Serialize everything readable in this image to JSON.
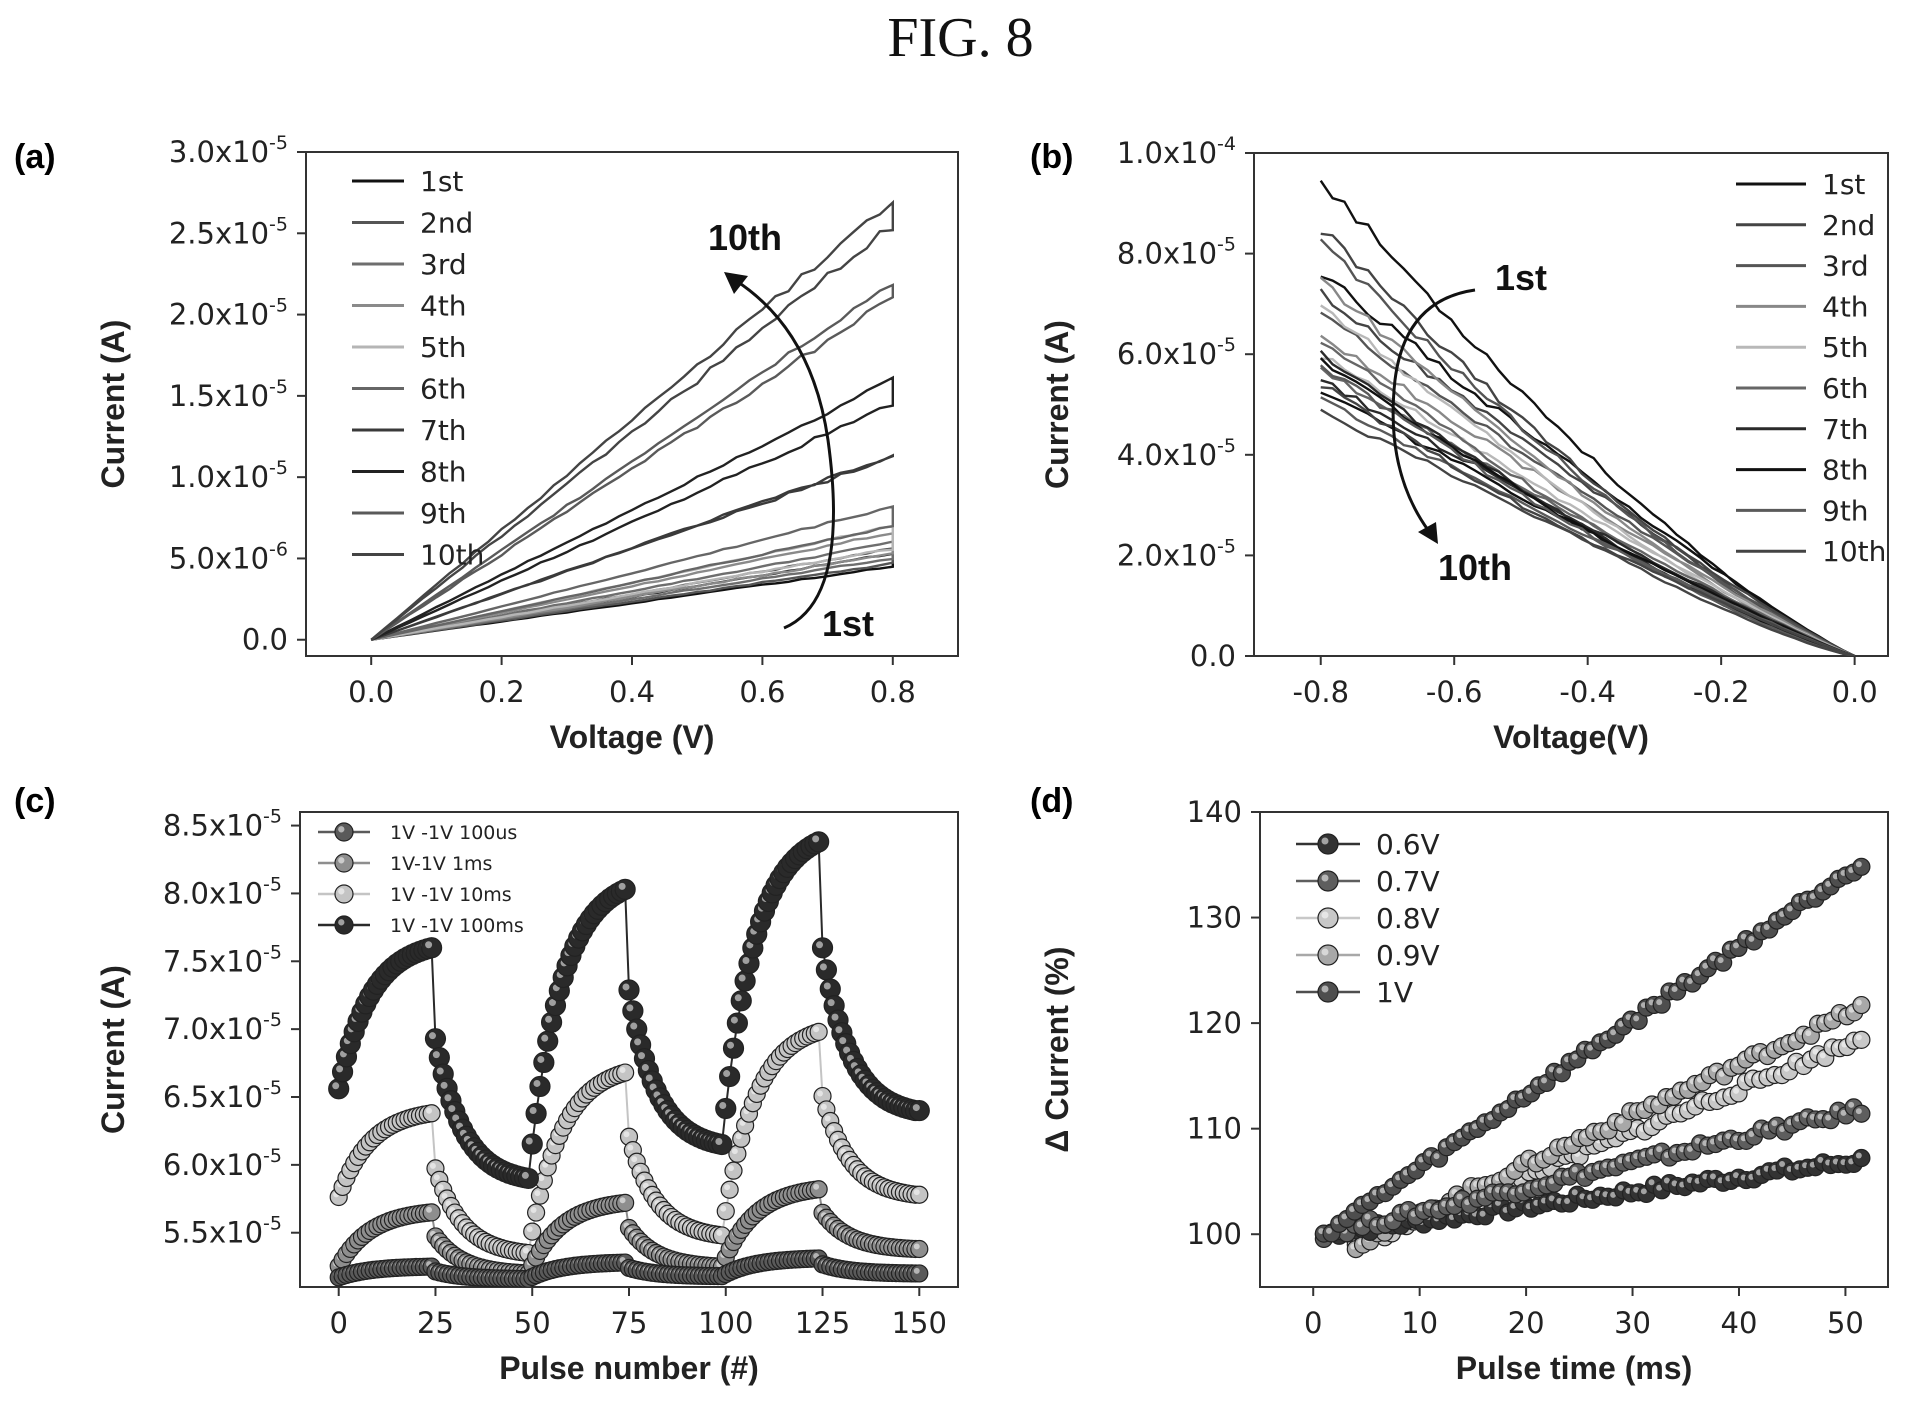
{
  "figure_title": "FIG. 8",
  "chart_data": [
    {
      "panel": "(a)",
      "type": "line",
      "xlabel": "Voltage (V)",
      "ylabel": "Current (A)",
      "xlim": [
        -0.1,
        0.9
      ],
      "ylim": [
        -1e-06,
        3e-05
      ],
      "xticks": [
        0.0,
        0.2,
        0.4,
        0.6,
        0.8
      ],
      "xtick_labels": [
        "0.0",
        "0.2",
        "0.4",
        "0.6",
        "0.8"
      ],
      "yticks": [
        0,
        5e-06,
        1e-05,
        1.5e-05,
        2e-05,
        2.5e-05,
        3e-05
      ],
      "ytick_labels": [
        [
          "0.0",
          ""
        ],
        [
          "5.0x10",
          "-6"
        ],
        [
          "1.0x10",
          "-5"
        ],
        [
          "1.5x10",
          "-5"
        ],
        [
          "2.0x10",
          "-5"
        ],
        [
          "2.5x10",
          "-5"
        ],
        [
          "3.0x10",
          "-5"
        ]
      ],
      "legend_position": "top-left",
      "annotations": [
        "10th",
        "1st"
      ],
      "colors": [
        "#111111",
        "#555555",
        "#6e6e6e",
        "#8a8a8a",
        "#b5b5b5",
        "#666666",
        "#3a3a3a",
        "#222222",
        "#5a5a5a",
        "#444444"
      ],
      "series": [
        {
          "name": "1st",
          "peak_y": 5.3e-06,
          "return_y": 4.5e-06
        },
        {
          "name": "2nd",
          "peak_y": 5.6e-06,
          "return_y": 4.7e-06
        },
        {
          "name": "3rd",
          "peak_y": 6e-06,
          "return_y": 5e-06
        },
        {
          "name": "4th",
          "peak_y": 6.6e-06,
          "return_y": 5.3e-06
        },
        {
          "name": "5th",
          "peak_y": 7e-06,
          "return_y": 5.6e-06
        },
        {
          "name": "6th",
          "peak_y": 8.2e-06,
          "return_y": 7e-06
        },
        {
          "name": "7th",
          "peak_y": 1.13e-05,
          "return_y": 1.12e-05
        },
        {
          "name": "8th",
          "peak_y": 1.6e-05,
          "return_y": 1.45e-05
        },
        {
          "name": "9th",
          "peak_y": 2.2e-05,
          "return_y": 2.1e-05
        },
        {
          "name": "10th",
          "peak_y": 2.7e-05,
          "return_y": 2.55e-05
        }
      ]
    },
    {
      "panel": "(b)",
      "type": "line",
      "xlabel": "Voltage(V)",
      "ylabel": "Current (A)",
      "xlim": [
        -0.9,
        0.05
      ],
      "ylim": [
        0,
        0.0001
      ],
      "xticks": [
        -0.8,
        -0.6,
        -0.4,
        -0.2,
        0.0
      ],
      "xtick_labels": [
        "-0.8",
        "-0.6",
        "-0.4",
        "-0.2",
        "0.0"
      ],
      "yticks": [
        0,
        2e-05,
        4e-05,
        6e-05,
        8e-05,
        0.0001
      ],
      "ytick_labels": [
        [
          "0.0",
          ""
        ],
        [
          "2.0x10",
          "-5"
        ],
        [
          "4.0x10",
          "-5"
        ],
        [
          "6.0x10",
          "-5"
        ],
        [
          "8.0x10",
          "-5"
        ],
        [
          "1.0x10",
          "-4"
        ]
      ],
      "legend_position": "top-right",
      "annotations": [
        "1st",
        "10th"
      ],
      "colors": [
        "#111111",
        "#444444",
        "#555555",
        "#888888",
        "#b8b8b8",
        "#666666",
        "#2a2a2a",
        "#111111",
        "#5a5a5a",
        "#444444"
      ],
      "series": [
        {
          "name": "1st",
          "start_y": 9.5e-05,
          "return_y": 7.6e-05
        },
        {
          "name": "2nd",
          "start_y": 8.5e-05,
          "return_y": 7.2e-05
        },
        {
          "name": "3rd",
          "start_y": 8.2e-05,
          "return_y": 6.8e-05
        },
        {
          "name": "4th",
          "start_y": 7.5e-05,
          "return_y": 6.4e-05
        },
        {
          "name": "5th",
          "start_y": 7e-05,
          "return_y": 6e-05
        },
        {
          "name": "6th",
          "start_y": 6.3e-05,
          "return_y": 5.7e-05
        },
        {
          "name": "7th",
          "start_y": 6e-05,
          "return_y": 5.5e-05
        },
        {
          "name": "8th",
          "start_y": 5.9e-05,
          "return_y": 5.3e-05
        },
        {
          "name": "9th",
          "start_y": 5.8e-05,
          "return_y": 5.1e-05
        },
        {
          "name": "10th",
          "start_y": 5.4e-05,
          "return_y": 4.9e-05
        }
      ]
    },
    {
      "panel": "(c)",
      "type": "scatter",
      "xlabel": "Pulse number (#)",
      "ylabel": "Current (A)",
      "xlim": [
        -10,
        160
      ],
      "ylim": [
        5.1e-05,
        8.6e-05
      ],
      "xticks": [
        0,
        25,
        50,
        75,
        100,
        125,
        150
      ],
      "xtick_labels": [
        "0",
        "25",
        "50",
        "75",
        "100",
        "125",
        "150"
      ],
      "yticks": [
        5.5e-05,
        6e-05,
        6.5e-05,
        7e-05,
        7.5e-05,
        8e-05,
        8.5e-05
      ],
      "ytick_labels": [
        [
          "5.5x10",
          "-5"
        ],
        [
          "6.0x10",
          "-5"
        ],
        [
          "6.5x10",
          "-5"
        ],
        [
          "7.0x10",
          "-5"
        ],
        [
          "7.5x10",
          "-5"
        ],
        [
          "8.0x10",
          "-5"
        ],
        [
          "8.5x10",
          "-5"
        ]
      ],
      "legend_position": "top-left",
      "series": [
        {
          "name": "1V -1V 100us",
          "color": "#5a5a5a",
          "peaks": [
            5.25e-05,
            5.28e-05,
            5.31e-05
          ],
          "lows": [
            5.16e-05,
            5.18e-05,
            5.2e-05
          ]
        },
        {
          "name": "1V-1V 1ms",
          "color": "#8e8e8e",
          "peaks": [
            5.65e-05,
            5.72e-05,
            5.82e-05
          ],
          "lows": [
            5.2e-05,
            5.25e-05,
            5.38e-05
          ]
        },
        {
          "name": "1V -1V 10ms",
          "color": "#c4c4c4",
          "peaks": [
            6.38e-05,
            6.68e-05,
            6.98e-05
          ],
          "lows": [
            5.35e-05,
            5.48e-05,
            5.78e-05
          ]
        },
        {
          "name": "1V -1V 100ms",
          "color": "#2a2a2a",
          "peaks": [
            7.6e-05,
            8.03e-05,
            8.38e-05
          ],
          "lows": [
            5.9e-05,
            6.15e-05,
            6.4e-05
          ]
        }
      ],
      "start_values": [
        5.16e-05,
        5.2e-05,
        5.68e-05,
        6.42e-05
      ]
    },
    {
      "panel": "(d)",
      "type": "scatter",
      "xlabel": "Pulse time (ms)",
      "ylabel": "Δ Current (%)",
      "xlim": [
        -5,
        54
      ],
      "ylim": [
        95,
        140
      ],
      "xticks": [
        0,
        10,
        20,
        30,
        40,
        50
      ],
      "xtick_labels": [
        "0",
        "10",
        "20",
        "30",
        "40",
        "50"
      ],
      "yticks": [
        100,
        110,
        120,
        130,
        140
      ],
      "ytick_labels": [
        [
          "100",
          ""
        ],
        [
          "110",
          ""
        ],
        [
          "120",
          ""
        ],
        [
          "130",
          ""
        ],
        [
          "140",
          ""
        ]
      ],
      "legend_position": "top-left",
      "series": [
        {
          "name": "0.6V",
          "color": "#333333",
          "x_start": 1,
          "x_end": 51.5,
          "y_start": 100,
          "y_end": 107
        },
        {
          "name": "0.7V",
          "color": "#5e5e5e",
          "x_start": 1,
          "x_end": 51.5,
          "y_start": 100,
          "y_end": 111.8
        },
        {
          "name": "0.8V",
          "color": "#c8c8c8",
          "x_start": 4,
          "x_end": 51.5,
          "y_start": 99,
          "y_end": 118.5
        },
        {
          "name": "0.9V",
          "color": "#a8a8a8",
          "x_start": 4,
          "x_end": 51.5,
          "y_start": 99,
          "y_end": 121.5
        },
        {
          "name": "1V",
          "color": "#4e4e4e",
          "x_start": 1,
          "x_end": 51.5,
          "y_start": 100,
          "y_end": 135.2
        }
      ]
    }
  ]
}
